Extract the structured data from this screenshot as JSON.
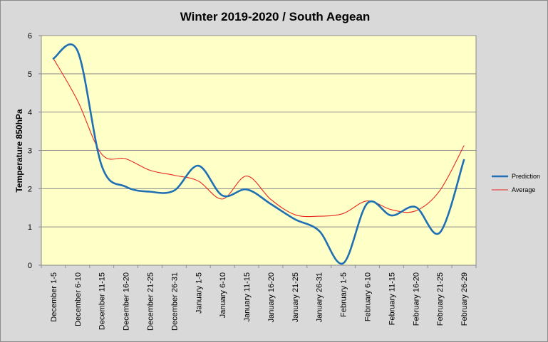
{
  "chart_data": {
    "type": "line",
    "title": "Winter 2019-2020 / South Aegean",
    "xlabel": "",
    "ylabel": "Temperature 850hPa",
    "ylim": [
      0,
      6
    ],
    "yticks": [
      "0",
      "1",
      "2",
      "3",
      "4",
      "5",
      "6"
    ],
    "grid": true,
    "legend_position": "right",
    "categories": [
      "December 1-5",
      "December 6-10",
      "December 11-15",
      "December 16-20",
      "December 21-25",
      "December 26-31",
      "January 1-5",
      "January 6-10",
      "January 11-15",
      "January 16-20",
      "January 21-25",
      "January 26-31",
      "February 1-5",
      "February 6-10",
      "February 11-15",
      "February 16-20",
      "February 21-25",
      "February 26-29"
    ],
    "series": [
      {
        "name": "Prediction",
        "color": "#1f6fb4",
        "values": [
          5.4,
          5.6,
          2.6,
          2.05,
          1.92,
          1.95,
          2.6,
          1.82,
          1.98,
          1.6,
          1.2,
          0.9,
          0.05,
          1.62,
          1.3,
          1.52,
          0.85,
          2.75
        ]
      },
      {
        "name": "Average",
        "color": "#e8281e",
        "values": [
          5.4,
          4.3,
          2.9,
          2.78,
          2.48,
          2.35,
          2.2,
          1.73,
          2.33,
          1.72,
          1.32,
          1.28,
          1.35,
          1.68,
          1.45,
          1.42,
          1.95,
          3.12
        ]
      }
    ]
  }
}
